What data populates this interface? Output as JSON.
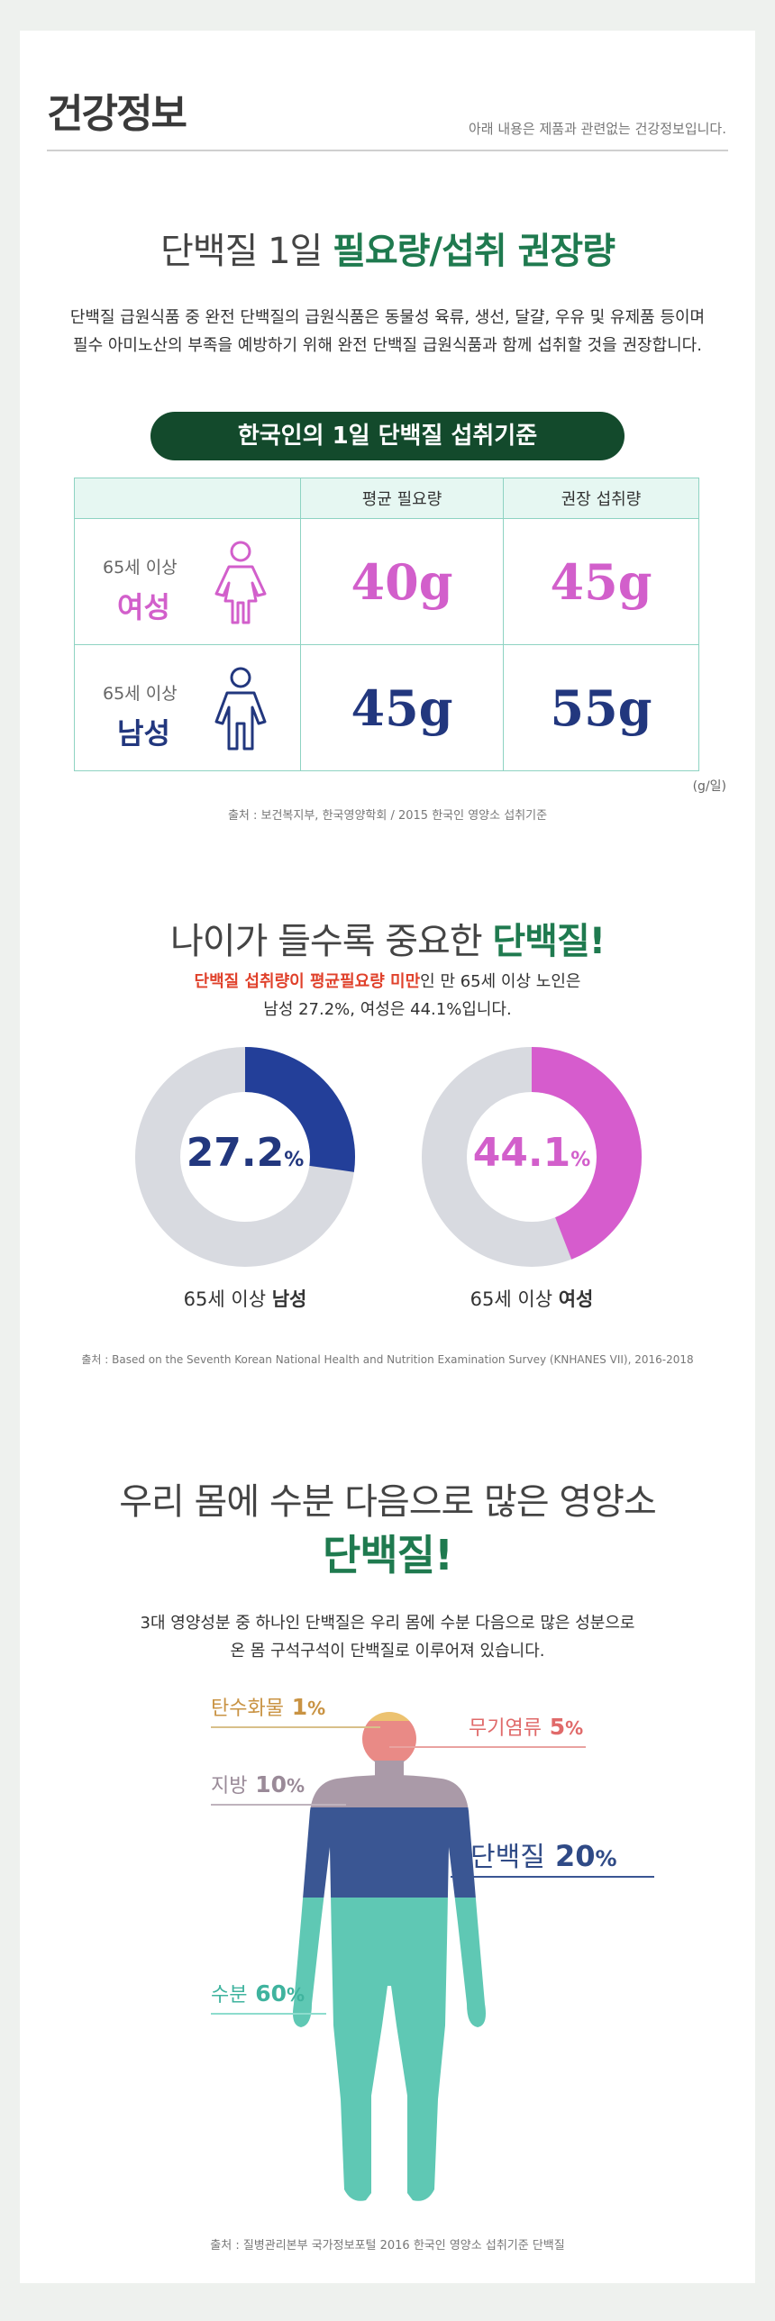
{
  "header": {
    "title": "건강정보",
    "disclaimer": "아래 내용은 제품과 관련없는 건강정보입니다."
  },
  "section1": {
    "heading_plain": "단백질 1일 ",
    "heading_highlight": "필요량/섭취 권장량",
    "paragraph_line1": "단백질 급원식품 중 완전 단백질의 급원식품은 동물성 육류, 생선, 달걀, 우유 및 유제품 등이며",
    "paragraph_line2": "필수 아미노산의 부족을 예방하기 위해 완전 단백질 급원식품과 함께 섭취할 것을 권장합니다.",
    "pill": "한국인의 1일 단백질 섭취기준",
    "table": {
      "headers": [
        "",
        "평균 필요량",
        "권장 섭취량"
      ],
      "rows": [
        {
          "age": "65세 이상",
          "sex": "여성",
          "avg": "40g",
          "rec": "45g"
        },
        {
          "age": "65세 이상",
          "sex": "남성",
          "avg": "45g",
          "rec": "55g"
        }
      ]
    },
    "unit": "(g/일)",
    "source": "출처 : 보건복지부, 한국영양학회 / 2015 한국인 영양소 섭취기준"
  },
  "section2": {
    "heading_plain": "나이가 들수록 중요한 ",
    "heading_highlight": "단백질!",
    "line1_red": "단백질 섭취량이 평균필요량 미만",
    "line1_rest": "인 만 65세 이상 노인은",
    "line2": "남성 27.2%, 여성은 44.1%입니다.",
    "donuts": [
      {
        "value": "27.2",
        "pct": "%",
        "fraction": 0.272,
        "label_plain": "65세 이상 ",
        "label_bold": "남성",
        "color": "#233f99"
      },
      {
        "value": "44.1",
        "pct": "%",
        "fraction": 0.441,
        "label_plain": "65세 이상 ",
        "label_bold": "여성",
        "color": "#d65ccd"
      }
    ],
    "track_color": "#d8dae0",
    "source": "출처 : Based on the Seventh Korean National Health and Nutrition Examination Survey (KNHANES VII), 2016-2018"
  },
  "section3": {
    "heading_line1": "우리 몸에 수분 다음으로 많은 영양소",
    "heading_line2": "단백질!",
    "paragraph_line1": "3대 영양성분 중 하나인 단백질은 우리 몸에 수분 다음으로 많은 성분으로",
    "paragraph_line2": "온 몸 구석구석이 단백질로 이루어져 있습니다.",
    "composition": [
      {
        "name": "탄수화물",
        "value": "1",
        "pct": "%",
        "color": "#e0a02c"
      },
      {
        "name": "무기염류",
        "value": "5",
        "pct": "%",
        "color": "#e06a6a"
      },
      {
        "name": "지방",
        "value": "10",
        "pct": "%",
        "color": "#a998a8"
      },
      {
        "name": "단백질",
        "value": "20",
        "pct": "%",
        "color": "#3a5693"
      },
      {
        "name": "수분",
        "value": "60",
        "pct": "%",
        "color": "#5fc8b4"
      }
    ],
    "source": "출처 : 질병관리본부 국가정보포털 2016 한국인 영양소 섭취기준 단백질"
  }
}
